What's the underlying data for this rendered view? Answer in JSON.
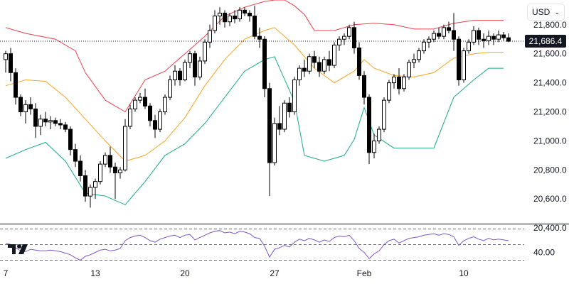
{
  "currency": {
    "label": "USD"
  },
  "last_price_label": "21,686.4",
  "colors": {
    "up": "#000000",
    "down": "#000000",
    "upper_band": "#e8414d",
    "middle_band": "#f5a623",
    "lower_band": "#1aa88a",
    "rsi": "#7e57c2",
    "last_line": "#131722",
    "grid_dash": "#6a6d78"
  },
  "logo": "tradingview-logo",
  "chart_data": [
    {
      "type": "candlestick",
      "title": "",
      "y_axis_ticks": [
        "21,800.0",
        "21,600.0",
        "21,400.0",
        "21,200.0",
        "21,000.0",
        "20,800.0",
        "20,600.0",
        "20,400.0"
      ],
      "y_tick_values": [
        21800,
        21600,
        21400,
        21200,
        21000,
        20800,
        20600,
        20400
      ],
      "ylim": [
        20430,
        21970
      ],
      "x_axis_ticks": [
        {
          "label": "7",
          "index": 0
        },
        {
          "label": "13",
          "index": 18
        },
        {
          "label": "20",
          "index": 36
        },
        {
          "label": "27",
          "index": 54
        },
        {
          "label": "Feb",
          "index": 72
        },
        {
          "label": "10",
          "index": 92
        }
      ],
      "last_price": 21686.4,
      "candles": [
        [
          21560,
          21620,
          21470,
          21600
        ],
        [
          21600,
          21640,
          21410,
          21470
        ],
        [
          21470,
          21500,
          21250,
          21300
        ],
        [
          21300,
          21320,
          21170,
          21200
        ],
        [
          21200,
          21280,
          21120,
          21250
        ],
        [
          21250,
          21300,
          21180,
          21220
        ],
        [
          21220,
          21260,
          21020,
          21100
        ],
        [
          21100,
          21180,
          21040,
          21150
        ],
        [
          21150,
          21200,
          21100,
          21130
        ],
        [
          21130,
          21170,
          21080,
          21140
        ],
        [
          21140,
          21160,
          21100,
          21120
        ],
        [
          21120,
          21150,
          21080,
          21110
        ],
        [
          21110,
          21130,
          21060,
          21080
        ],
        [
          21080,
          21100,
          20900,
          20940
        ],
        [
          20940,
          20980,
          20820,
          20860
        ],
        [
          20860,
          20900,
          20720,
          20760
        ],
        [
          20760,
          20800,
          20580,
          20620
        ],
        [
          20620,
          20700,
          20540,
          20680
        ],
        [
          20680,
          20740,
          20600,
          20720
        ],
        [
          20720,
          20860,
          20700,
          20840
        ],
        [
          20840,
          20920,
          20820,
          20900
        ],
        [
          20900,
          20960,
          20780,
          20820
        ],
        [
          20820,
          20850,
          20600,
          20780
        ],
        [
          20780,
          20820,
          20740,
          20800
        ],
        [
          20800,
          21150,
          20790,
          21100
        ],
        [
          21100,
          21250,
          21080,
          21220
        ],
        [
          21220,
          21300,
          21200,
          21280
        ],
        [
          21280,
          21330,
          21260,
          21300
        ],
        [
          21300,
          21360,
          21220,
          21240
        ],
        [
          21240,
          21260,
          21100,
          21140
        ],
        [
          21140,
          21180,
          21020,
          21080
        ],
        [
          21080,
          21220,
          21060,
          21200
        ],
        [
          21200,
          21320,
          21180,
          21300
        ],
        [
          21300,
          21450,
          21280,
          21420
        ],
        [
          21420,
          21520,
          21380,
          21480
        ],
        [
          21480,
          21500,
          21380,
          21420
        ],
        [
          21420,
          21560,
          21410,
          21540
        ],
        [
          21540,
          21620,
          21500,
          21600
        ],
        [
          21600,
          21620,
          21380,
          21440
        ],
        [
          21440,
          21580,
          21420,
          21550
        ],
        [
          21550,
          21700,
          21530,
          21680
        ],
        [
          21680,
          21800,
          21640,
          21760
        ],
        [
          21760,
          21900,
          21740,
          21860
        ],
        [
          21860,
          21920,
          21800,
          21880
        ],
        [
          21880,
          21900,
          21780,
          21820
        ],
        [
          21820,
          21880,
          21790,
          21860
        ],
        [
          21860,
          21900,
          21810,
          21840
        ],
        [
          21840,
          21920,
          21820,
          21900
        ],
        [
          21900,
          21920,
          21860,
          21880
        ],
        [
          21880,
          21900,
          21820,
          21860
        ],
        [
          21860,
          21930,
          21700,
          21720
        ],
        [
          21720,
          21780,
          21640,
          21700
        ],
        [
          21700,
          21720,
          21300,
          21360
        ],
        [
          21360,
          21400,
          20620,
          20850
        ],
        [
          20850,
          21160,
          20830,
          21120
        ],
        [
          21120,
          21240,
          21040,
          21080
        ],
        [
          21080,
          21280,
          21060,
          21260
        ],
        [
          21260,
          21300,
          21160,
          21200
        ],
        [
          21200,
          21440,
          21180,
          21420
        ],
        [
          21420,
          21520,
          21380,
          21500
        ],
        [
          21500,
          21560,
          21440,
          21480
        ],
        [
          21480,
          21600,
          21460,
          21580
        ],
        [
          21580,
          21620,
          21500,
          21540
        ],
        [
          21540,
          21580,
          21440,
          21480
        ],
        [
          21480,
          21580,
          21460,
          21560
        ],
        [
          21560,
          21620,
          21480,
          21520
        ],
        [
          21520,
          21680,
          21500,
          21660
        ],
        [
          21660,
          21720,
          21620,
          21700
        ],
        [
          21700,
          21740,
          21660,
          21720
        ],
        [
          21720,
          21800,
          21700,
          21780
        ],
        [
          21780,
          21820,
          21600,
          21640
        ],
        [
          21640,
          21680,
          21420,
          21450
        ],
        [
          21450,
          21480,
          21250,
          21300
        ],
        [
          21300,
          21320,
          20840,
          20920
        ],
        [
          20920,
          21050,
          20880,
          21000
        ],
        [
          21000,
          21100,
          20980,
          21080
        ],
        [
          21080,
          21300,
          21060,
          21280
        ],
        [
          21280,
          21420,
          21260,
          21400
        ],
        [
          21400,
          21460,
          21360,
          21440
        ],
        [
          21440,
          21500,
          21320,
          21360
        ],
        [
          21360,
          21460,
          21340,
          21440
        ],
        [
          21440,
          21560,
          21420,
          21540
        ],
        [
          21540,
          21600,
          21500,
          21560
        ],
        [
          21560,
          21640,
          21540,
          21620
        ],
        [
          21620,
          21700,
          21600,
          21680
        ],
        [
          21680,
          21720,
          21640,
          21700
        ],
        [
          21700,
          21760,
          21680,
          21740
        ],
        [
          21740,
          21780,
          21700,
          21720
        ],
        [
          21720,
          21800,
          21700,
          21780
        ],
        [
          21780,
          21820,
          21740,
          21760
        ],
        [
          21760,
          21880,
          21620,
          21700
        ],
        [
          21700,
          21720,
          21380,
          21420
        ],
        [
          21420,
          21640,
          21400,
          21620
        ],
        [
          21620,
          21700,
          21600,
          21680
        ],
        [
          21680,
          21790,
          21660,
          21760
        ],
        [
          21760,
          21780,
          21660,
          21700
        ],
        [
          21700,
          21740,
          21640,
          21690
        ],
        [
          21690,
          21760,
          21660,
          21720
        ],
        [
          21720,
          21740,
          21660,
          21700
        ],
        [
          21700,
          21760,
          21680,
          21730
        ],
        [
          21730,
          21750,
          21690,
          21710
        ],
        [
          21710,
          21740,
          21680,
          21686
        ]
      ],
      "bands": {
        "upper": [
          [
            0,
            21780
          ],
          [
            4,
            21740
          ],
          [
            10,
            21700
          ],
          [
            14,
            21620
          ],
          [
            16,
            21470
          ],
          [
            20,
            21280
          ],
          [
            24,
            21200
          ],
          [
            28,
            21420
          ],
          [
            32,
            21480
          ],
          [
            36,
            21600
          ],
          [
            40,
            21720
          ],
          [
            44,
            21860
          ],
          [
            48,
            21920
          ],
          [
            52,
            21960
          ],
          [
            54,
            21970
          ],
          [
            56,
            21970
          ],
          [
            58,
            21930
          ],
          [
            60,
            21870
          ],
          [
            62,
            21760
          ],
          [
            66,
            21760
          ],
          [
            70,
            21800
          ],
          [
            74,
            21810
          ],
          [
            78,
            21800
          ],
          [
            82,
            21770
          ],
          [
            86,
            21770
          ],
          [
            90,
            21810
          ],
          [
            94,
            21830
          ],
          [
            100,
            21830
          ]
        ],
        "middle": [
          [
            0,
            21380
          ],
          [
            4,
            21420
          ],
          [
            8,
            21410
          ],
          [
            12,
            21300
          ],
          [
            16,
            21150
          ],
          [
            20,
            21000
          ],
          [
            24,
            20860
          ],
          [
            28,
            20900
          ],
          [
            32,
            21000
          ],
          [
            36,
            21160
          ],
          [
            40,
            21380
          ],
          [
            44,
            21560
          ],
          [
            48,
            21700
          ],
          [
            52,
            21760
          ],
          [
            54,
            21780
          ],
          [
            58,
            21660
          ],
          [
            62,
            21500
          ],
          [
            66,
            21400
          ],
          [
            70,
            21480
          ],
          [
            72,
            21560
          ],
          [
            74,
            21500
          ],
          [
            78,
            21450
          ],
          [
            82,
            21440
          ],
          [
            86,
            21470
          ],
          [
            90,
            21570
          ],
          [
            94,
            21600
          ],
          [
            97,
            21610
          ],
          [
            100,
            21610
          ]
        ],
        "lower": [
          [
            0,
            20880
          ],
          [
            4,
            20940
          ],
          [
            8,
            20990
          ],
          [
            12,
            20860
          ],
          [
            16,
            20640
          ],
          [
            20,
            20620
          ],
          [
            24,
            20560
          ],
          [
            28,
            20720
          ],
          [
            32,
            20900
          ],
          [
            36,
            20980
          ],
          [
            40,
            21120
          ],
          [
            44,
            21300
          ],
          [
            48,
            21480
          ],
          [
            52,
            21560
          ],
          [
            54,
            21580
          ],
          [
            58,
            21270
          ],
          [
            60,
            20900
          ],
          [
            64,
            20860
          ],
          [
            68,
            20900
          ],
          [
            70,
            21010
          ],
          [
            72,
            21230
          ],
          [
            74,
            21040
          ],
          [
            78,
            20950
          ],
          [
            82,
            20950
          ],
          [
            86,
            20950
          ],
          [
            90,
            21300
          ],
          [
            94,
            21420
          ],
          [
            97,
            21500
          ],
          [
            100,
            21500
          ]
        ]
      }
    },
    {
      "type": "line",
      "title": "",
      "y_axis_ticks": [
        "40.00"
      ],
      "y_tick_values": [
        40
      ],
      "reference_lines": [
        30,
        50,
        70
      ],
      "ylim": [
        25,
        75
      ],
      "series": [
        {
          "values": [
            52,
            50,
            46,
            42,
            41,
            44,
            43,
            42,
            42,
            43,
            42,
            41,
            39,
            37,
            33,
            30,
            35,
            37,
            40,
            43,
            44,
            42,
            43,
            45,
            55,
            59,
            61,
            62,
            59,
            55,
            53,
            57,
            59,
            61,
            62,
            59,
            62,
            63,
            56,
            59,
            62,
            65,
            67,
            68,
            65,
            66,
            64,
            67,
            66,
            64,
            59,
            58,
            48,
            34,
            44,
            46,
            49,
            47,
            53,
            57,
            55,
            58,
            56,
            53,
            56,
            54,
            59,
            61,
            60,
            62,
            55,
            45,
            40,
            32,
            38,
            42,
            50,
            55,
            57,
            52,
            55,
            58,
            59,
            60,
            62,
            63,
            64,
            62,
            64,
            63,
            60,
            49,
            55,
            58,
            60,
            57,
            55,
            58,
            56,
            57,
            56,
            55
          ]
        }
      ]
    }
  ]
}
